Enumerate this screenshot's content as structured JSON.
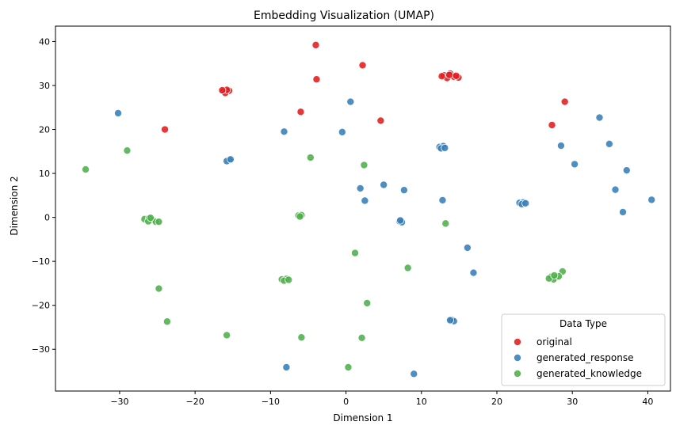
{
  "chart_data": {
    "type": "scatter",
    "title": "Embedding Visualization (UMAP)",
    "xlabel": "Dimension 1",
    "ylabel": "Dimension 2",
    "xlim": [
      -38.5,
      43
    ],
    "ylim": [
      -39.5,
      43.5
    ],
    "xticks": [
      -30,
      -20,
      -10,
      0,
      10,
      20,
      30,
      40
    ],
    "yticks": [
      -30,
      -20,
      -10,
      0,
      10,
      20,
      30,
      40
    ],
    "grid": false,
    "legend": {
      "title": "Data Type",
      "placement": "lower-right"
    },
    "series": [
      {
        "name": "original",
        "color": "#e41a1c",
        "points": [
          [
            -4,
            39.2
          ],
          [
            2.2,
            34.6
          ],
          [
            -3.9,
            31.4
          ],
          [
            -6,
            24
          ],
          [
            -24,
            20
          ],
          [
            4.6,
            22
          ],
          [
            29,
            26.3
          ],
          [
            27.3,
            21
          ],
          [
            -16.2,
            28.7
          ],
          [
            -15.5,
            28.8
          ],
          [
            -16,
            28.3
          ],
          [
            -15.8,
            29
          ],
          [
            -16.4,
            28.9
          ],
          [
            13,
            32.3
          ],
          [
            13.8,
            32.7
          ],
          [
            14.3,
            32
          ],
          [
            13.4,
            31.7
          ],
          [
            14.9,
            31.8
          ],
          [
            12.7,
            32.1
          ],
          [
            13.7,
            32.4
          ],
          [
            14.6,
            32.2
          ]
        ]
      },
      {
        "name": "generated_response",
        "color": "#377eb8",
        "points": [
          [
            -30.2,
            23.7
          ],
          [
            0.6,
            26.3
          ],
          [
            -8.2,
            19.5
          ],
          [
            -0.5,
            19.4
          ],
          [
            1.9,
            6.6
          ],
          [
            2.5,
            3.8
          ],
          [
            5,
            7.4
          ],
          [
            7.7,
            6.2
          ],
          [
            12.8,
            3.9
          ],
          [
            28.5,
            16.3
          ],
          [
            33.6,
            22.7
          ],
          [
            34.9,
            16.7
          ],
          [
            30.3,
            12.1
          ],
          [
            37.2,
            10.7
          ],
          [
            35.7,
            6.3
          ],
          [
            36.7,
            1.2
          ],
          [
            40.5,
            4
          ],
          [
            16.1,
            -6.9
          ],
          [
            16.9,
            -12.6
          ],
          [
            -7.9,
            -34.1
          ],
          [
            9,
            -35.6
          ],
          [
            -15.5,
            13
          ],
          [
            -15.8,
            12.8
          ],
          [
            -15.3,
            13.2
          ],
          [
            12.4,
            16
          ],
          [
            12.9,
            16.2
          ],
          [
            12.6,
            15.7
          ],
          [
            13.1,
            15.8
          ],
          [
            23,
            3.3
          ],
          [
            23.5,
            3.4
          ],
          [
            23.3,
            3
          ],
          [
            23.8,
            3.2
          ],
          [
            7.1,
            -0.9
          ],
          [
            7.4,
            -1.1
          ],
          [
            7.2,
            -0.7
          ],
          [
            14,
            -23.3
          ],
          [
            14.3,
            -23.6
          ],
          [
            13.8,
            -23.4
          ]
        ]
      },
      {
        "name": "generated_knowledge",
        "color": "#4daf4a",
        "points": [
          [
            -34.5,
            10.9
          ],
          [
            -29,
            15.2
          ],
          [
            -4.7,
            13.6
          ],
          [
            2.4,
            11.9
          ],
          [
            13.2,
            -1.4
          ],
          [
            1.2,
            -8.1
          ],
          [
            -24.8,
            -16.2
          ],
          [
            -23.7,
            -23.7
          ],
          [
            -15.8,
            -26.8
          ],
          [
            -5.9,
            -27.3
          ],
          [
            2.1,
            -27.4
          ],
          [
            0.3,
            -34.1
          ],
          [
            2.8,
            -19.5
          ],
          [
            8.2,
            -11.5
          ],
          [
            28.7,
            -12.3
          ],
          [
            -26.7,
            -0.4
          ],
          [
            -26.1,
            -0.2
          ],
          [
            -25.6,
            -0.6
          ],
          [
            -25.2,
            -1
          ],
          [
            -24.8,
            -1
          ],
          [
            -26.2,
            -0.9
          ],
          [
            -25.9,
            -0.1
          ],
          [
            -6.3,
            0.4
          ],
          [
            -5.9,
            0.5
          ],
          [
            -6.1,
            0.2
          ],
          [
            -8.5,
            -14.1
          ],
          [
            -7.9,
            -14
          ],
          [
            -8.2,
            -14.4
          ],
          [
            -7.6,
            -14.2
          ],
          [
            27.2,
            -13.5
          ],
          [
            27.8,
            -13.7
          ],
          [
            27.5,
            -14.1
          ],
          [
            28.2,
            -13.4
          ],
          [
            26.9,
            -13.9
          ],
          [
            27.6,
            -13.2
          ]
        ]
      }
    ]
  }
}
